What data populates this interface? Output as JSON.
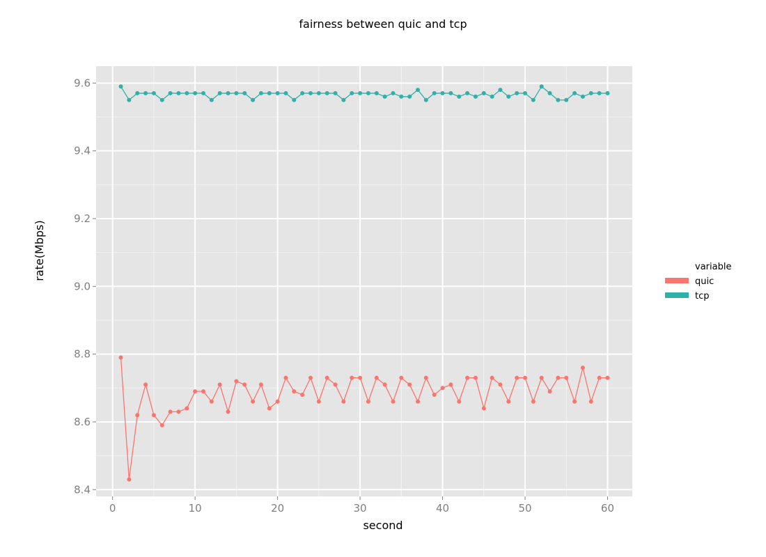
{
  "chart_data": {
    "type": "line",
    "title": "fairness between quic and tcp",
    "xlabel": "second",
    "ylabel": "rate(Mbps)",
    "xlim": [
      -2,
      63
    ],
    "ylim": [
      8.38,
      9.65
    ],
    "x_ticks": [
      0,
      10,
      20,
      30,
      40,
      50,
      60
    ],
    "y_ticks": [
      8.4,
      8.6,
      8.8,
      9.0,
      9.2,
      9.4,
      9.6
    ],
    "y_tick_labels": [
      "8.4",
      "8.6",
      "8.8",
      "9.0",
      "9.2",
      "9.4",
      "9.6"
    ],
    "grid": true,
    "legend": {
      "title": "variable",
      "placement": "right"
    },
    "x": [
      1,
      2,
      3,
      4,
      5,
      6,
      7,
      8,
      9,
      10,
      11,
      12,
      13,
      14,
      15,
      16,
      17,
      18,
      19,
      20,
      21,
      22,
      23,
      24,
      25,
      26,
      27,
      28,
      29,
      30,
      31,
      32,
      33,
      34,
      35,
      36,
      37,
      38,
      39,
      40,
      41,
      42,
      43,
      44,
      45,
      46,
      47,
      48,
      49,
      50,
      51,
      52,
      53,
      54,
      55,
      56,
      57,
      58,
      59,
      60
    ],
    "series": [
      {
        "name": "quic",
        "color": "#f8766d",
        "values": [
          8.79,
          8.43,
          8.62,
          8.71,
          8.62,
          8.59,
          8.63,
          8.63,
          8.64,
          8.69,
          8.69,
          8.66,
          8.71,
          8.63,
          8.72,
          8.71,
          8.66,
          8.71,
          8.64,
          8.66,
          8.73,
          8.69,
          8.68,
          8.73,
          8.66,
          8.73,
          8.71,
          8.66,
          8.73,
          8.73,
          8.66,
          8.73,
          8.71,
          8.66,
          8.73,
          8.71,
          8.66,
          8.73,
          8.68,
          8.7,
          8.71,
          8.66,
          8.73,
          8.73,
          8.64,
          8.73,
          8.71,
          8.66,
          8.73,
          8.73,
          8.66,
          8.73,
          8.69,
          8.73,
          8.73,
          8.66,
          8.76,
          8.66,
          8.73,
          8.73
        ]
      },
      {
        "name": "tcp",
        "color": "#2fb0aa",
        "values": [
          9.59,
          9.55,
          9.57,
          9.57,
          9.57,
          9.55,
          9.57,
          9.57,
          9.57,
          9.57,
          9.57,
          9.55,
          9.57,
          9.57,
          9.57,
          9.57,
          9.55,
          9.57,
          9.57,
          9.57,
          9.57,
          9.55,
          9.57,
          9.57,
          9.57,
          9.57,
          9.57,
          9.55,
          9.57,
          9.57,
          9.57,
          9.57,
          9.56,
          9.57,
          9.56,
          9.56,
          9.58,
          9.55,
          9.57,
          9.57,
          9.57,
          9.56,
          9.57,
          9.56,
          9.57,
          9.56,
          9.58,
          9.56,
          9.57,
          9.57,
          9.55,
          9.59,
          9.57,
          9.55,
          9.55,
          9.57,
          9.56,
          9.57,
          9.57,
          9.57
        ]
      }
    ]
  }
}
